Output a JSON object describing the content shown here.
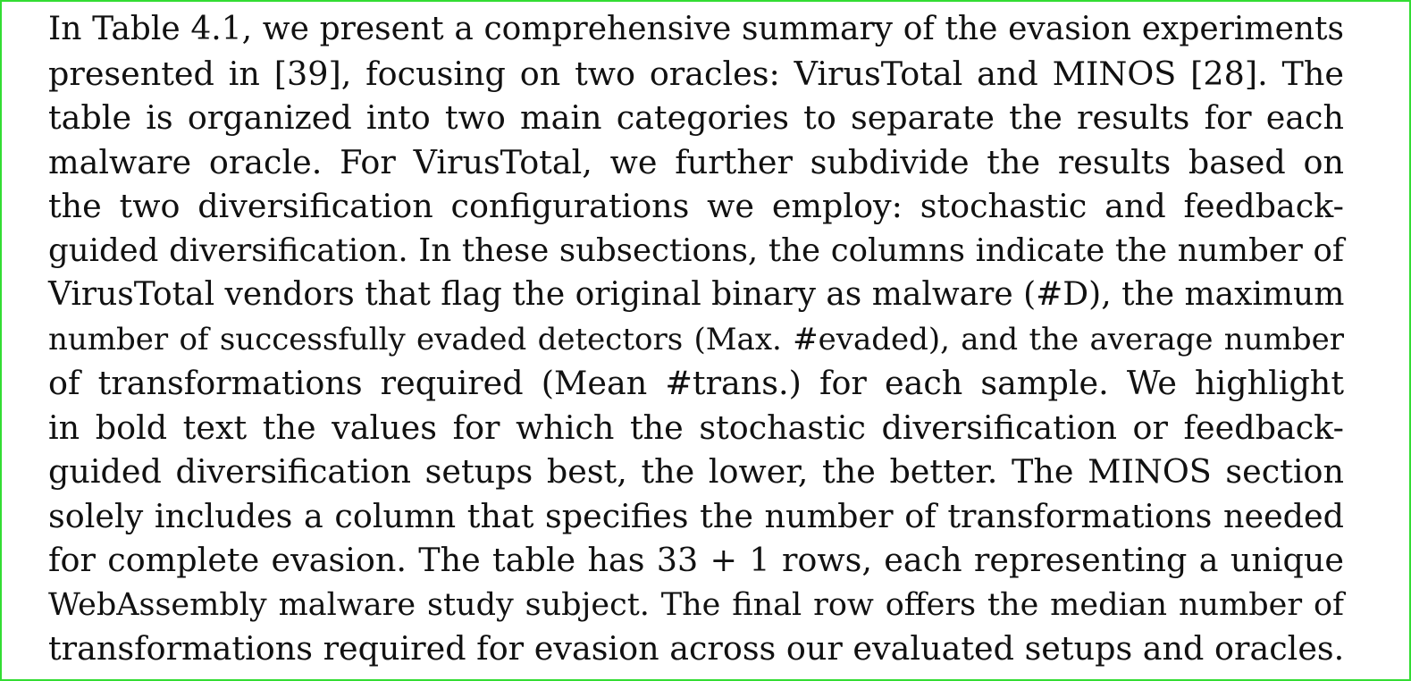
{
  "document": {
    "paragraph_lines": [
      "In Table 4.1, we present a comprehensive summary of the evasion experiments",
      "presented in [39], focusing on two oracles:  VirusTotal and MINOS [28].  The",
      "table is organized into two main categories to separate the results for each",
      "malware oracle.  For VirusTotal, we further subdivide the results based on",
      "the two diversification configurations we employ:  stochastic and feedback-",
      "guided diversification. In these subsections, the columns indicate the number of",
      "VirusTotal vendors that flag the original binary as malware (#D), the maximum",
      "number of successfully evaded detectors (Max.  #evaded), and the average number",
      "of transformations required (Mean #trans.)  for each sample.  We highlight",
      "in bold text the values for which the stochastic diversification or feedback-",
      "guided diversification setups best, the lower, the better.  The MINOS section",
      "solely includes a column that specifies the number of transformations needed",
      "for complete evasion.  The table has 33 + 1 rows, each representing a unique",
      "WebAssembly malware study subject. The final row offers the median number of",
      "transformations required for evasion across our evaluated setups and oracles."
    ]
  }
}
